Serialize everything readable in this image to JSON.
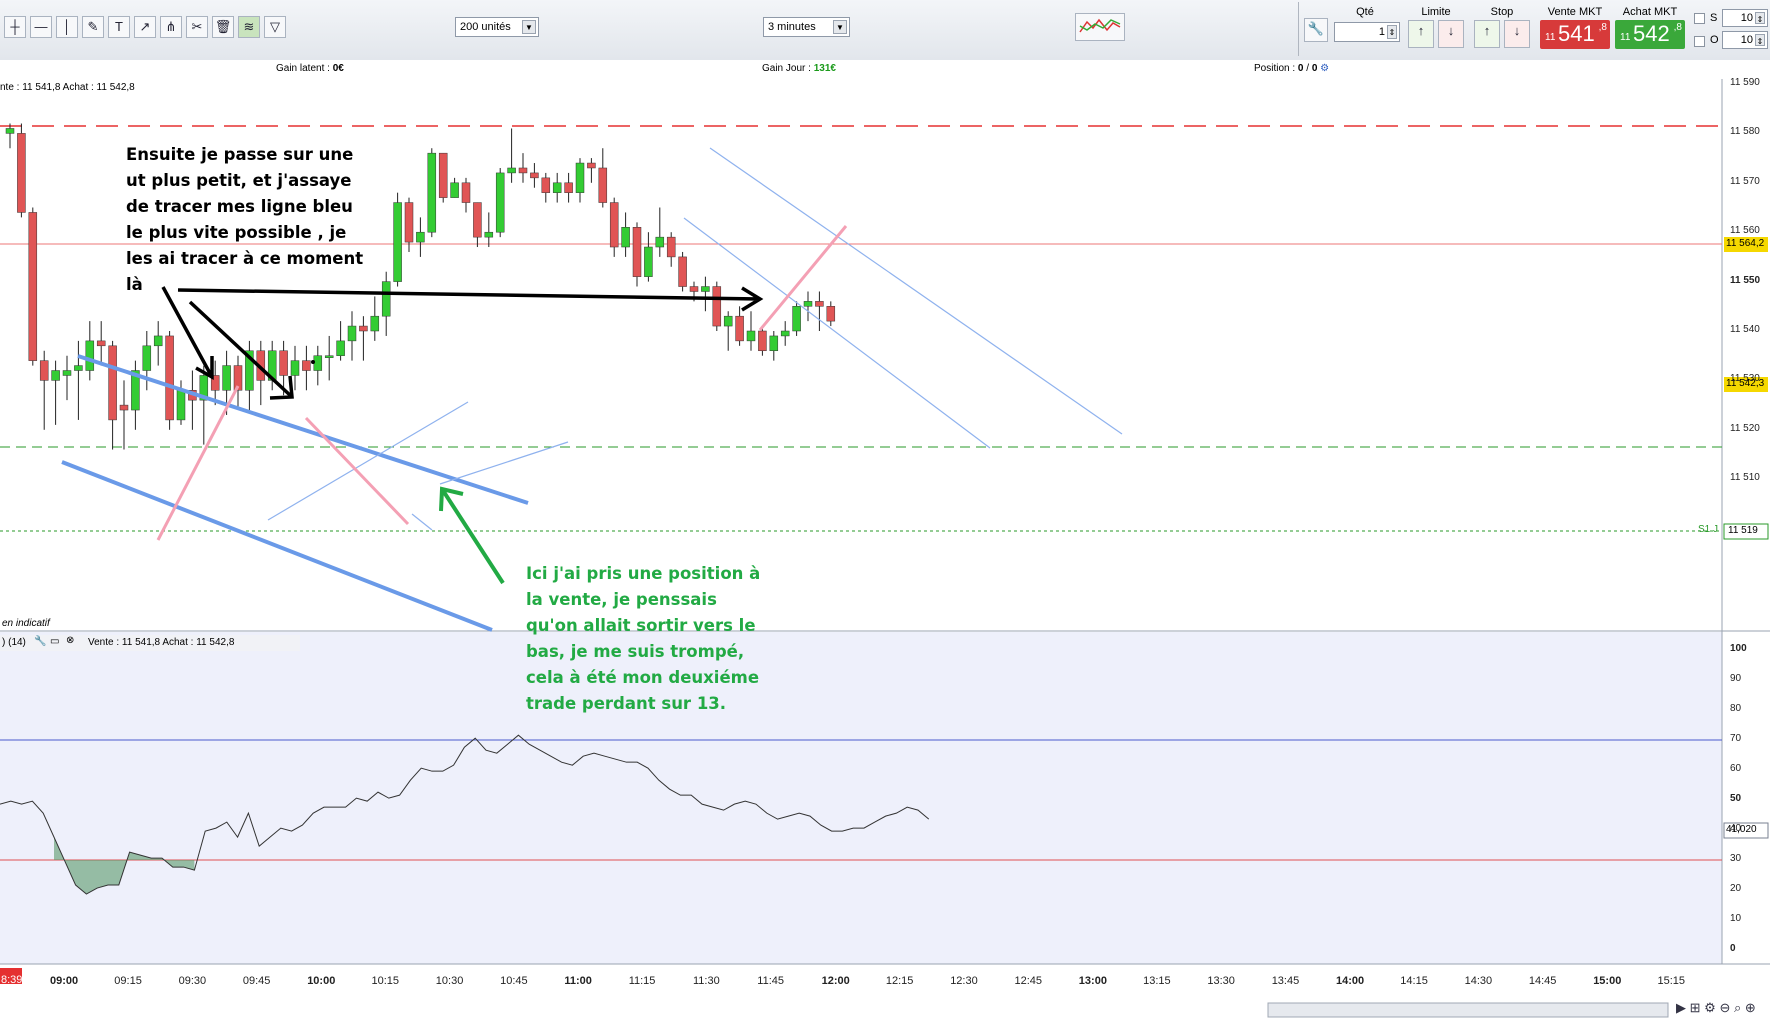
{
  "toolbar": {
    "quantity_select": "200 unités",
    "timeframe_select": "3 minutes",
    "qty_label": "Qté",
    "qty_value": "1",
    "limit_label": "Limite",
    "stop_label": "Stop",
    "sell_label": "Vente MKT",
    "buy_label": "Achat MKT",
    "sell_prefix": "11",
    "sell_big": "541",
    "sell_sup": ",8",
    "buy_prefix": "11",
    "buy_big": "542",
    "buy_sup": ",8",
    "s_label": "S",
    "s_value": "10",
    "o_label": "O",
    "o_value": "10",
    "icons": [
      "crosshair-icon",
      "line-icon",
      "vertical-line-icon",
      "draw-icon",
      "text-icon",
      "arrow-icon",
      "fork-icon",
      "tools-icon",
      "trash-icon",
      "channel-icon",
      "triangle-icon"
    ]
  },
  "info": {
    "gain_latent_label": "Gain latent :",
    "gain_latent_value": "0€",
    "gain_jour_label": "Gain Jour :",
    "gain_jour_value": "131€",
    "position_label": "Position :",
    "position_value": "0",
    "position_sep": "/",
    "position_value2": "0"
  },
  "price_panel": {
    "header": "nte : 11 541,8 Achat : 11 542,8",
    "mode": "en indicatif",
    "s1_label": "S1 J",
    "tag_resist": "11 564,2",
    "tag_last": "11 542,3",
    "tag_support": "11 519",
    "axis": [
      "11 590",
      "11 580",
      "11 570",
      "11 560",
      "11 550",
      "11 540",
      "11 530",
      "11 520",
      "11 510"
    ]
  },
  "rsi_panel": {
    "header_left": ") (14)",
    "header": "Vente : 11 541,8 Achat : 11 542,8",
    "value_tag": "41,020",
    "axis": [
      "100",
      "90",
      "80",
      "70",
      "60",
      "50",
      "40",
      "30",
      "20",
      "10",
      "0"
    ]
  },
  "time_axis": {
    "start": "8:39",
    "labels": [
      "09:00",
      "09:15",
      "09:30",
      "09:45",
      "10:00",
      "10:15",
      "10:30",
      "10:45",
      "11:00",
      "11:15",
      "11:30",
      "11:45",
      "12:00",
      "12:15",
      "12:30",
      "12:45",
      "13:00",
      "13:15",
      "13:30",
      "13:45",
      "14:00",
      "14:15",
      "14:30",
      "14:45",
      "15:00",
      "15:15"
    ]
  },
  "annotations": {
    "note_black": [
      "Ensuite je passe sur une",
      "ut plus petit, et j'assaye",
      "de tracer mes ligne bleu",
      "le plus vite possible , je",
      "les ai tracer à ce moment",
      "là"
    ],
    "note_green": [
      "Ici j'ai pris une position à",
      "la vente, je penssais",
      "qu'on allait sortir vers le",
      "bas, je me suis trompé,",
      "cela à été mon deuxiéme",
      "trade perdant sur 13."
    ]
  },
  "colors": {
    "bull": "#33cc33",
    "bear": "#e05555",
    "channel": "#6a9ae8",
    "pink": "#f4a0b4",
    "note_green": "#22aa44",
    "sell_bg": "#d73a3a",
    "buy_bg": "#3aa83a"
  }
}
